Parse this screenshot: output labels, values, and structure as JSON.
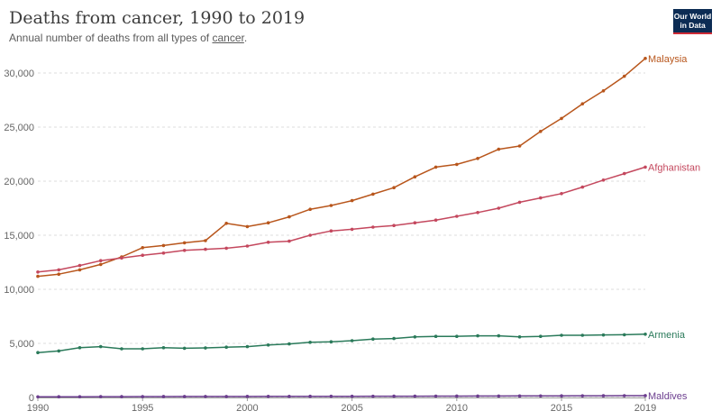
{
  "header": {
    "title": "Deaths from cancer, 1990 to 2019",
    "subtitle_prefix": "Annual number of deaths from all types of ",
    "subtitle_link": "cancer",
    "subtitle_suffix": ".",
    "logo_line1": "Our World",
    "logo_line2": "in Data"
  },
  "chart_data": {
    "type": "line",
    "title": "Deaths from cancer, 1990 to 2019",
    "subtitle": "Annual number of deaths from all types of cancer.",
    "x": [
      1990,
      1991,
      1992,
      1993,
      1994,
      1995,
      1996,
      1997,
      1998,
      1999,
      2000,
      2001,
      2002,
      2003,
      2004,
      2005,
      2006,
      2007,
      2008,
      2009,
      2010,
      2011,
      2012,
      2013,
      2014,
      2015,
      2016,
      2017,
      2018,
      2019
    ],
    "xlim": [
      1990,
      2019
    ],
    "ylim": [
      0,
      32000
    ],
    "x_ticks": [
      1990,
      1995,
      2000,
      2005,
      2010,
      2015,
      2019
    ],
    "y_ticks": [
      0,
      5000,
      10000,
      15000,
      20000,
      25000,
      30000
    ],
    "y_tick_labels": [
      "0",
      "5,000",
      "10,000",
      "15,000",
      "20,000",
      "25,000",
      "30,000"
    ],
    "grid": "horizontal-dashed",
    "legend": "labels at line ends",
    "series": [
      {
        "name": "Malaysia",
        "color": "#b8561c",
        "values": [
          11200,
          11400,
          11800,
          12300,
          13000,
          13850,
          14050,
          14300,
          14500,
          16100,
          15800,
          16150,
          16700,
          17400,
          17750,
          18200,
          18800,
          19400,
          20400,
          21300,
          21550,
          22100,
          22950,
          23250,
          24600,
          25800,
          27150,
          28350,
          29700,
          31350
        ]
      },
      {
        "name": "Afghanistan",
        "color": "#c4485e",
        "values": [
          11600,
          11800,
          12200,
          12650,
          12900,
          13150,
          13350,
          13600,
          13700,
          13800,
          14000,
          14350,
          14450,
          15000,
          15400,
          15550,
          15750,
          15900,
          16150,
          16400,
          16750,
          17100,
          17500,
          18050,
          18450,
          18850,
          19450,
          20100,
          20700,
          21300
        ]
      },
      {
        "name": "Armenia",
        "color": "#2a7a5a",
        "values": [
          4150,
          4300,
          4600,
          4700,
          4500,
          4500,
          4600,
          4550,
          4580,
          4650,
          4700,
          4850,
          4950,
          5100,
          5150,
          5250,
          5400,
          5450,
          5600,
          5650,
          5650,
          5700,
          5700,
          5600,
          5650,
          5750,
          5750,
          5780,
          5800,
          5850
        ]
      },
      {
        "name": "Maldives",
        "color": "#6b3d8e",
        "values": [
          60,
          65,
          70,
          75,
          78,
          80,
          85,
          88,
          90,
          92,
          95,
          100,
          105,
          108,
          110,
          112,
          115,
          118,
          120,
          125,
          128,
          130,
          135,
          140,
          145,
          150,
          155,
          160,
          165,
          170
        ]
      }
    ]
  }
}
